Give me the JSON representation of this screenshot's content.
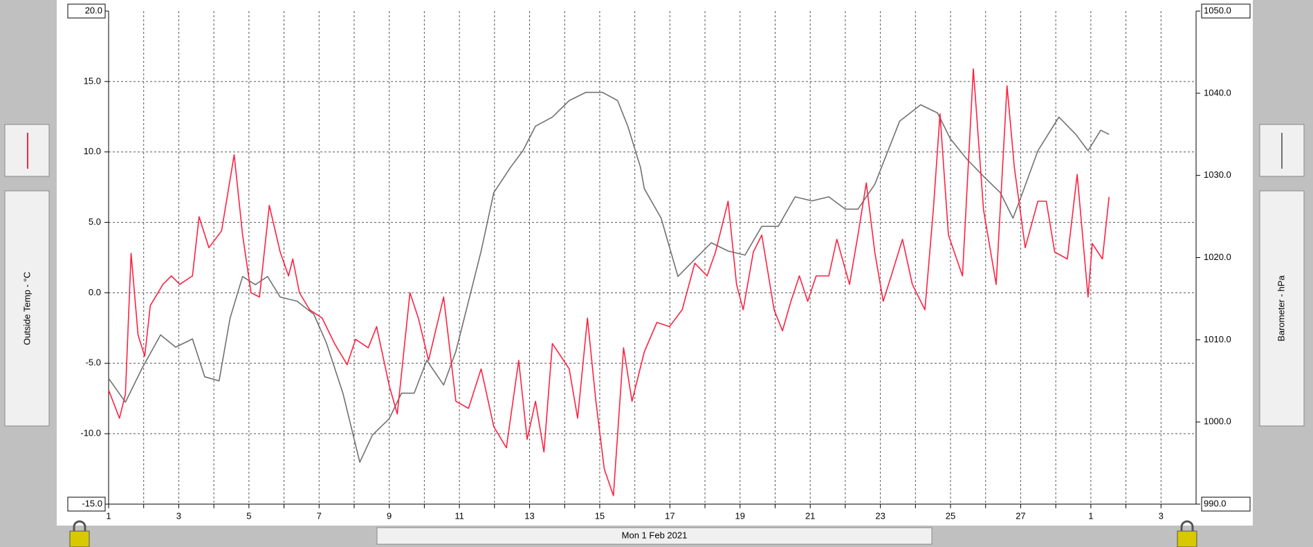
{
  "chart_data": {
    "type": "line",
    "xlabel": "Mon 1 Feb 2021",
    "xlim": [
      1,
      32
    ],
    "xticks": [
      1,
      3,
      5,
      7,
      9,
      11,
      13,
      15,
      17,
      19,
      21,
      23,
      25,
      27,
      {
        "value": 29,
        "label": "1"
      },
      {
        "value": 31,
        "label": "3"
      }
    ],
    "xminor": [
      2,
      4,
      6,
      8,
      10,
      12,
      14,
      16,
      18,
      20,
      22,
      24,
      26,
      28,
      30
    ],
    "ylim": [
      -15,
      20
    ],
    "yticks": [
      {
        "value": -15,
        "label": "-15.0"
      },
      {
        "value": -10,
        "label": "-10.0"
      },
      {
        "value": -5,
        "label": "-5.0"
      },
      {
        "value": 0,
        "label": "0.0"
      },
      {
        "value": 5,
        "label": "5.0"
      },
      {
        "value": 10,
        "label": "10.0"
      },
      {
        "value": 15,
        "label": "15.0"
      },
      {
        "value": 20,
        "label": "20.0"
      }
    ],
    "y2lim": [
      990,
      1050
    ],
    "y2ticks": [
      {
        "value": 990,
        "label": "990.0"
      },
      {
        "value": 1000,
        "label": "1000.0"
      },
      {
        "value": 1010,
        "label": "1010.0"
      },
      {
        "value": 1020,
        "label": "1020.0"
      },
      {
        "value": 1030,
        "label": "1030.0"
      },
      {
        "value": 1040,
        "label": "1040.0"
      },
      {
        "value": 1050,
        "label": "1050.0"
      }
    ],
    "grid": true,
    "series": [
      {
        "name": "Outside Temp - °C",
        "color": "#ff2040",
        "x": [
          1.0,
          1.31,
          1.48,
          1.64,
          1.84,
          2.03,
          2.19,
          2.55,
          2.79,
          3.03,
          3.39,
          3.58,
          3.86,
          4.22,
          4.58,
          4.82,
          5.06,
          5.3,
          5.58,
          5.89,
          6.13,
          6.25,
          6.44,
          6.73,
          7.09,
          7.44,
          7.8,
          8.04,
          8.4,
          8.64,
          9.0,
          9.23,
          9.59,
          9.83,
          10.12,
          10.55,
          10.9,
          11.26,
          11.62,
          11.98,
          12.34,
          12.69,
          12.93,
          13.17,
          13.41,
          13.65,
          14.13,
          14.37,
          14.65,
          14.89,
          15.13,
          15.39,
          15.68,
          15.92,
          16.27,
          16.63,
          16.99,
          17.35,
          17.71,
          18.06,
          18.3,
          18.66,
          18.9,
          19.09,
          19.38,
          19.62,
          19.97,
          20.21,
          20.45,
          20.69,
          20.93,
          21.17,
          21.53,
          21.76,
          22.12,
          22.36,
          22.6,
          22.84,
          23.08,
          23.31,
          23.63,
          23.91,
          24.27,
          24.51,
          24.7,
          24.94,
          25.34,
          25.65,
          25.94,
          26.3,
          26.61,
          26.82,
          27.13,
          27.49,
          27.73,
          27.97,
          28.33,
          28.61,
          28.92,
          29.04,
          29.33,
          29.52
        ],
        "values": [
          -6.9,
          -8.9,
          -7.2,
          2.8,
          -3.0,
          -4.5,
          -0.9,
          0.6,
          1.2,
          0.6,
          1.2,
          5.4,
          3.2,
          4.4,
          9.8,
          4.1,
          0.0,
          -0.3,
          6.2,
          2.9,
          1.2,
          2.4,
          0.0,
          -1.2,
          -1.8,
          -3.6,
          -5.1,
          -3.3,
          -3.9,
          -2.4,
          -6.6,
          -8.6,
          0.0,
          -1.8,
          -4.8,
          -0.3,
          -7.7,
          -8.2,
          -5.4,
          -9.5,
          -11.0,
          -4.8,
          -10.4,
          -7.7,
          -11.3,
          -3.6,
          -5.4,
          -8.9,
          -1.8,
          -7.7,
          -12.5,
          -14.4,
          -3.9,
          -7.7,
          -4.2,
          -2.1,
          -2.4,
          -1.2,
          2.1,
          1.2,
          2.9,
          6.5,
          0.6,
          -1.2,
          2.9,
          4.1,
          -1.2,
          -2.7,
          -0.6,
          1.2,
          -0.6,
          1.2,
          1.2,
          3.8,
          0.6,
          4.1,
          7.8,
          2.9,
          -0.6,
          1.2,
          3.8,
          0.6,
          -1.2,
          5.9,
          12.7,
          4.1,
          1.2,
          15.9,
          5.9,
          0.6,
          14.7,
          8.9,
          3.2,
          6.5,
          6.5,
          2.9,
          2.4,
          8.4,
          -0.3,
          3.5,
          2.4,
          6.8
        ]
      },
      {
        "name": "Barometer - hPa",
        "color": "#707070",
        "axis": "y2",
        "x": [
          1.0,
          1.48,
          1.95,
          2.48,
          2.91,
          3.39,
          3.74,
          4.15,
          4.46,
          4.82,
          5.18,
          5.53,
          5.89,
          6.37,
          6.85,
          7.21,
          7.68,
          8.16,
          8.52,
          9.0,
          9.35,
          9.71,
          10.07,
          10.55,
          10.9,
          11.26,
          11.62,
          11.98,
          12.46,
          12.81,
          13.17,
          13.65,
          14.13,
          14.6,
          15.08,
          15.51,
          15.8,
          16.16,
          16.27,
          16.75,
          17.23,
          17.71,
          18.18,
          18.66,
          19.14,
          19.62,
          20.09,
          20.57,
          21.05,
          21.53,
          22.0,
          22.36,
          22.84,
          23.55,
          24.15,
          24.63,
          24.99,
          25.46,
          25.94,
          26.42,
          26.78,
          27.01,
          27.49,
          28.09,
          28.57,
          28.92,
          29.28,
          29.52
        ],
        "values": [
          1005.3,
          1002.4,
          1006.5,
          1010.6,
          1009.1,
          1010.1,
          1005.5,
          1005.0,
          1012.6,
          1017.7,
          1016.7,
          1017.7,
          1015.2,
          1014.7,
          1013.1,
          1009.6,
          1003.5,
          995.1,
          998.4,
          1000.4,
          1003.5,
          1003.5,
          1007.5,
          1004.5,
          1008.6,
          1014.7,
          1020.8,
          1027.9,
          1031.0,
          1033.0,
          1036.0,
          1037.1,
          1039.1,
          1040.1,
          1040.1,
          1039.1,
          1036.0,
          1031.0,
          1028.4,
          1024.8,
          1017.7,
          1019.8,
          1021.8,
          1020.8,
          1020.3,
          1023.8,
          1023.8,
          1027.4,
          1026.9,
          1027.4,
          1025.9,
          1025.9,
          1028.9,
          1036.6,
          1038.6,
          1037.6,
          1034.5,
          1032.0,
          1029.9,
          1027.9,
          1024.8,
          1027.4,
          1033.0,
          1037.1,
          1035.0,
          1033.0,
          1035.5,
          1035.0
        ]
      }
    ]
  }
}
